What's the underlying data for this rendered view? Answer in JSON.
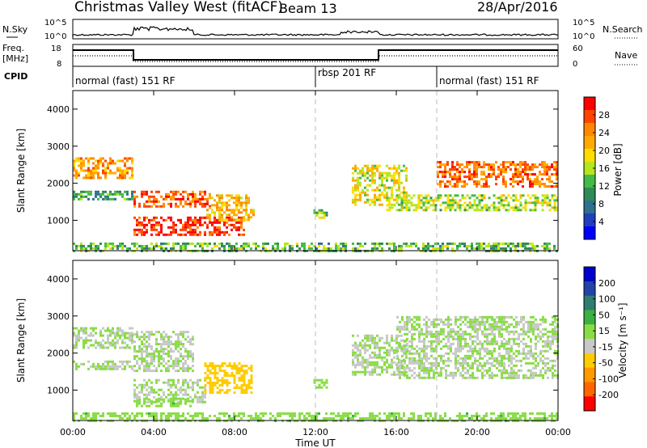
{
  "header": {
    "station": "Christmas Valley West (fitACF)",
    "beam": "Beam 13",
    "date": "28/Apr/2016"
  },
  "noise_panel": {
    "left_label": "N.Sky",
    "right_label": "N.Search",
    "left_ticks": [
      "10^5",
      "10^0"
    ],
    "right_ticks": [
      "10^5",
      "10^0"
    ]
  },
  "freq_panel": {
    "left_label_1": "Freq.",
    "left_label_2": "[MHz]",
    "right_label": "Nave",
    "left_ticks": [
      "18",
      "8"
    ],
    "right_ticks": [
      "60",
      "0"
    ]
  },
  "cpid": {
    "label": "CPID",
    "segments": [
      {
        "name": "normal (fast) 151 RF",
        "start": "00:00",
        "end": "12:00"
      },
      {
        "name": "rbsp 201 RF",
        "start": "12:00",
        "end": "18:00"
      },
      {
        "name": "normal (fast) 151 RF",
        "start": "18:00",
        "end": "24:00"
      }
    ]
  },
  "power_colorbar": {
    "label": "Power [dB]",
    "ticks": [
      "28",
      "24",
      "20",
      "16",
      "12",
      "8",
      "4"
    ],
    "colors": [
      "#ff0000",
      "#ff4400",
      "#ff8800",
      "#ffaa00",
      "#ffdd00",
      "#b5e61d",
      "#44bb44",
      "#2e8b57",
      "#2f6f8f",
      "#1f3fbf",
      "#0000ff"
    ]
  },
  "velocity_colorbar": {
    "label": "Velocity [m s⁻¹]",
    "ticks": [
      "200",
      "100",
      "50",
      "15",
      "-15",
      "-50",
      "-100",
      "-200"
    ],
    "colors": [
      "#0000cc",
      "#2244aa",
      "#2e7d6e",
      "#3cb043",
      "#88dd44",
      "#c8c8c8",
      "#ffcc00",
      "#ff9900",
      "#ff6600",
      "#ff0000"
    ]
  },
  "axes": {
    "ylabel": "Slant Range [km]",
    "xlabel": "Time UT",
    "yticks": [
      "4000",
      "3000",
      "2000",
      "1000"
    ],
    "xticks": [
      "00:00",
      "04:00",
      "08:00",
      "12:00",
      "16:00",
      "20:00",
      "00:00"
    ]
  },
  "chart_data": [
    {
      "type": "heatmap",
      "title": "Power",
      "xlabel": "",
      "ylabel": "Slant Range [km]",
      "xlim": [
        0,
        24
      ],
      "ylim": [
        180,
        4500
      ],
      "colorbar": {
        "label": "Power [dB]",
        "range": [
          0,
          30
        ]
      },
      "regions": [
        {
          "t0": 0.0,
          "t1": 3.0,
          "r0": 2150,
          "r1": 2700,
          "value": 22
        },
        {
          "t0": 0.0,
          "t1": 3.0,
          "r0": 1600,
          "r1": 1800,
          "value": 10
        },
        {
          "t0": 3.0,
          "t1": 6.8,
          "r0": 1350,
          "r1": 1800,
          "value": 26
        },
        {
          "t0": 3.0,
          "t1": 8.5,
          "r0": 600,
          "r1": 1100,
          "value": 29
        },
        {
          "t0": 6.6,
          "t1": 8.9,
          "r0": 1000,
          "r1": 1700,
          "value": 20
        },
        {
          "t0": 11.9,
          "t1": 12.6,
          "r0": 1050,
          "r1": 1300,
          "value": 14
        },
        {
          "t0": 13.8,
          "t1": 16.5,
          "r0": 1400,
          "r1": 2500,
          "value": 17
        },
        {
          "t0": 15.5,
          "t1": 24.0,
          "r0": 1300,
          "r1": 1700,
          "value": 15
        },
        {
          "t0": 18.0,
          "t1": 24.0,
          "r0": 1900,
          "r1": 2600,
          "value": 25
        },
        {
          "t0": 0.0,
          "t1": 24.0,
          "r0": 200,
          "r1": 400,
          "value": 12
        }
      ]
    },
    {
      "type": "heatmap",
      "title": "Velocity",
      "xlabel": "Time UT",
      "ylabel": "Slant Range [km]",
      "xlim": [
        0,
        24
      ],
      "ylim": [
        180,
        4500
      ],
      "colorbar": {
        "label": "Velocity [m s⁻¹]",
        "range": [
          -200,
          200
        ]
      },
      "regions": [
        {
          "t0": 0.0,
          "t1": 3.0,
          "r0": 2150,
          "r1": 2700,
          "value": 0
        },
        {
          "t0": 0.0,
          "t1": 3.0,
          "r0": 1600,
          "r1": 1800,
          "value": 0
        },
        {
          "t0": 3.0,
          "t1": 6.0,
          "r0": 1500,
          "r1": 2600,
          "value": 0
        },
        {
          "t0": 3.0,
          "t1": 6.5,
          "r0": 700,
          "r1": 1300,
          "value": 0
        },
        {
          "t0": 3.0,
          "t1": 6.0,
          "r0": 550,
          "r1": 800,
          "value": 30
        },
        {
          "t0": 6.5,
          "t1": 8.9,
          "r0": 900,
          "r1": 1750,
          "value": -60
        },
        {
          "t0": 11.9,
          "t1": 12.6,
          "r0": 1050,
          "r1": 1300,
          "value": 30
        },
        {
          "t0": 13.8,
          "t1": 16.5,
          "r0": 1400,
          "r1": 2500,
          "value": 0
        },
        {
          "t0": 16.0,
          "t1": 24.0,
          "r0": 1300,
          "r1": 3000,
          "value": 0
        },
        {
          "t0": 0.0,
          "t1": 24.0,
          "r0": 200,
          "r1": 400,
          "value": 30
        }
      ]
    }
  ]
}
